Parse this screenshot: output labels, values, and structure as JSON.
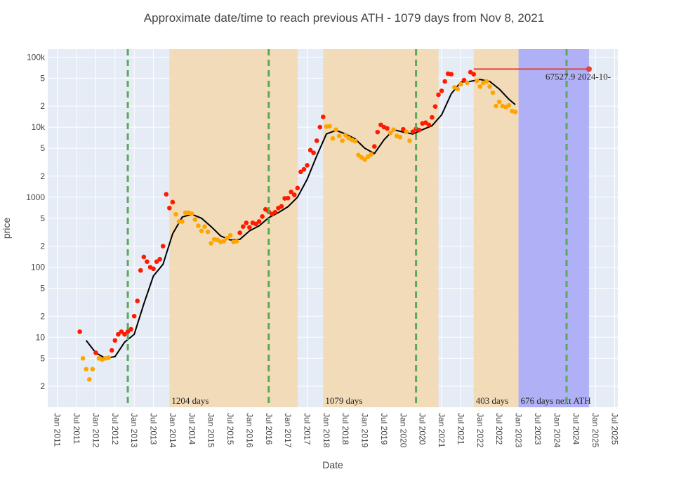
{
  "chart_data": {
    "type": "scatter",
    "title": "Approximate date/time to reach previous ATH - 1079 days from Nov 8, 2021",
    "x_label": "Date",
    "y_label": "price",
    "log_y": true,
    "grid": true,
    "xlim": [
      "2010-10",
      "2025-08"
    ],
    "ylim": [
      1,
      130000
    ],
    "xticks": [
      {
        "value": "2011-01",
        "label": "Jan 2011"
      },
      {
        "value": "2011-07",
        "label": "Jul 2011"
      },
      {
        "value": "2012-01",
        "label": "Jan 2012"
      },
      {
        "value": "2012-07",
        "label": "Jul 2012"
      },
      {
        "value": "2013-01",
        "label": "Jan 2013"
      },
      {
        "value": "2013-07",
        "label": "Jul 2013"
      },
      {
        "value": "2014-01",
        "label": "Jan 2014"
      },
      {
        "value": "2014-07",
        "label": "Jul 2014"
      },
      {
        "value": "2015-01",
        "label": "Jan 2015"
      },
      {
        "value": "2015-07",
        "label": "Jul 2015"
      },
      {
        "value": "2016-01",
        "label": "Jan 2016"
      },
      {
        "value": "2016-07",
        "label": "Jul 2016"
      },
      {
        "value": "2017-01",
        "label": "Jan 2017"
      },
      {
        "value": "2017-07",
        "label": "Jul 2017"
      },
      {
        "value": "2018-01",
        "label": "Jan 2018"
      },
      {
        "value": "2018-07",
        "label": "Jul 2018"
      },
      {
        "value": "2019-01",
        "label": "Jan 2019"
      },
      {
        "value": "2019-07",
        "label": "Jul 2019"
      },
      {
        "value": "2020-01",
        "label": "Jan 2020"
      },
      {
        "value": "2020-07",
        "label": "Jul 2020"
      },
      {
        "value": "2021-01",
        "label": "Jan 2021"
      },
      {
        "value": "2021-07",
        "label": "Jul 2021"
      },
      {
        "value": "2022-01",
        "label": "Jan 2022"
      },
      {
        "value": "2022-07",
        "label": "Jul 2022"
      },
      {
        "value": "2023-01",
        "label": "Jan 2023"
      },
      {
        "value": "2023-07",
        "label": "Jul 2023"
      },
      {
        "value": "2024-01",
        "label": "Jan 2024"
      },
      {
        "value": "2024-07",
        "label": "Jul 2024"
      },
      {
        "value": "2025-01",
        "label": "Jan 2025"
      },
      {
        "value": "2025-07",
        "label": "Jul 2025"
      }
    ],
    "yticks": [
      2,
      5,
      10,
      {
        "value": 20,
        "label": "2"
      },
      {
        "value": 50,
        "label": "5"
      },
      100,
      {
        "value": 200,
        "label": "2"
      },
      {
        "value": 500,
        "label": "5"
      },
      1000,
      {
        "value": 2000,
        "label": "2"
      },
      {
        "value": 5000,
        "label": "5"
      },
      {
        "value": 10000,
        "label": "10k"
      },
      {
        "value": 20000,
        "label": "2"
      },
      {
        "value": 50000,
        "label": "5"
      },
      {
        "value": 100000,
        "label": "100k"
      }
    ],
    "shaded_regions": [
      {
        "x0": "2013-12",
        "x1": "2017-04",
        "color": "#f2dab4",
        "label": "1204 days"
      },
      {
        "x0": "2017-12",
        "x1": "2020-12",
        "color": "#f2dab4",
        "label": "1079 days"
      },
      {
        "x0": "2021-11",
        "x1": "2023-01",
        "color": "#f2dab4",
        "label": "403 days"
      },
      {
        "x0": "2023-01",
        "x1": "2024-11",
        "color": "#adadf7",
        "label": "676 days next ATH"
      }
    ],
    "vlines": [
      "2012-11",
      "2016-07",
      "2020-05",
      "2024-04"
    ],
    "vline_color": "#5ba85b",
    "ath": {
      "x0": "2021-11",
      "x1": "2024-11",
      "value": 67527.9,
      "color": "#e0443c",
      "label": "67527.9 2024-10-"
    },
    "series": [
      {
        "type": "scatter",
        "color": "#ff1a00",
        "x": [
          "2011-08",
          "2012-01",
          "2012-06",
          "2012-07",
          "2012-08",
          "2012-09",
          "2012-10",
          "2012-11",
          "2012-12",
          "2013-01",
          "2013-02",
          "2013-03",
          "2013-04",
          "2013-05",
          "2013-06",
          "2013-07",
          "2013-08",
          "2013-09",
          "2013-10",
          "2013-11",
          "2013-12",
          "2014-01",
          "2015-10",
          "2015-11",
          "2015-12",
          "2016-01",
          "2016-02",
          "2016-03",
          "2016-04",
          "2016-05",
          "2016-06",
          "2016-07",
          "2016-08",
          "2016-09",
          "2016-10",
          "2016-11",
          "2016-12",
          "2017-01",
          "2017-02",
          "2017-03",
          "2017-04",
          "2017-05",
          "2017-06",
          "2017-07",
          "2017-08",
          "2017-09",
          "2017-10",
          "2017-11",
          "2017-12",
          "2019-04",
          "2019-05",
          "2019-06",
          "2019-07",
          "2019-08",
          "2020-01",
          "2020-04",
          "2020-05",
          "2020-06",
          "2020-07",
          "2020-08",
          "2020-09",
          "2020-10",
          "2020-11",
          "2020-12",
          "2021-01",
          "2021-02",
          "2021-03",
          "2021-04",
          "2021-08",
          "2021-10",
          "2021-11"
        ],
        "values": [
          12,
          6,
          6.5,
          9,
          11,
          12,
          11,
          12,
          13,
          20,
          33,
          90,
          140,
          120,
          100,
          95,
          120,
          130,
          200,
          1100,
          700,
          850,
          310,
          380,
          430,
          370,
          430,
          415,
          450,
          530,
          670,
          620,
          575,
          610,
          700,
          740,
          960,
          970,
          1190,
          1080,
          1350,
          2300,
          2500,
          2850,
          4700,
          4300,
          6400,
          10000,
          14000,
          5300,
          8500,
          10800,
          10000,
          9600,
          9300,
          8600,
          9400,
          9100,
          11300,
          11600,
          10800,
          13800,
          19700,
          29000,
          33000,
          45000,
          58000,
          57000,
          47000,
          61000,
          57000
        ]
      },
      {
        "type": "scatter",
        "color": "#ffa500",
        "x": [
          "2011-09",
          "2011-10",
          "2011-11",
          "2011-12",
          "2012-02",
          "2012-03",
          "2012-04",
          "2012-05",
          "2014-02",
          "2014-03",
          "2014-04",
          "2014-05",
          "2014-06",
          "2014-07",
          "2014-08",
          "2014-09",
          "2014-10",
          "2014-11",
          "2014-12",
          "2015-01",
          "2015-02",
          "2015-03",
          "2015-04",
          "2015-05",
          "2015-06",
          "2015-07",
          "2015-08",
          "2015-09",
          "2018-01",
          "2018-02",
          "2018-03",
          "2018-04",
          "2018-05",
          "2018-06",
          "2018-07",
          "2018-08",
          "2018-09",
          "2018-10",
          "2018-11",
          "2018-12",
          "2019-01",
          "2019-02",
          "2019-03",
          "2019-09",
          "2019-10",
          "2019-11",
          "2019-12",
          "2020-02",
          "2020-03",
          "2021-05",
          "2021-06",
          "2021-07",
          "2021-09",
          "2021-12",
          "2022-01",
          "2022-02",
          "2022-03",
          "2022-04",
          "2022-05",
          "2022-06",
          "2022-07",
          "2022-08",
          "2022-09",
          "2022-10",
          "2022-11",
          "2022-12"
        ],
        "values": [
          5,
          3.5,
          2.5,
          3.5,
          5,
          4.8,
          5,
          5.1,
          570,
          450,
          450,
          600,
          600,
          580,
          480,
          390,
          330,
          380,
          320,
          220,
          250,
          245,
          230,
          235,
          260,
          285,
          230,
          235,
          10200,
          10300,
          6900,
          9200,
          7500,
          6400,
          7700,
          7000,
          6600,
          6300,
          4000,
          3700,
          3450,
          3800,
          4100,
          8300,
          9200,
          7500,
          7200,
          8600,
          6400,
          37000,
          35000,
          41000,
          43000,
          46000,
          38000,
          43000,
          45000,
          38000,
          31000,
          20000,
          23000,
          20000,
          19400,
          20500,
          17000,
          16500
        ]
      },
      {
        "type": "line",
        "color": "#000000",
        "x": [
          "2011-10",
          "2012-01",
          "2012-04",
          "2012-07",
          "2012-10",
          "2013-01",
          "2013-04",
          "2013-07",
          "2013-10",
          "2014-01",
          "2014-04",
          "2014-07",
          "2014-10",
          "2015-01",
          "2015-04",
          "2015-07",
          "2015-10",
          "2016-01",
          "2016-04",
          "2016-07",
          "2016-10",
          "2017-01",
          "2017-04",
          "2017-07",
          "2017-10",
          "2018-01",
          "2018-04",
          "2018-07",
          "2018-10",
          "2019-01",
          "2019-04",
          "2019-07",
          "2019-10",
          "2020-01",
          "2020-04",
          "2020-07",
          "2020-10",
          "2021-01",
          "2021-04",
          "2021-07",
          "2021-10",
          "2022-01",
          "2022-04",
          "2022-07",
          "2022-10",
          "2022-12"
        ],
        "values": [
          9,
          6,
          5,
          5.3,
          8.5,
          11,
          30,
          75,
          110,
          300,
          520,
          570,
          500,
          380,
          280,
          245,
          250,
          330,
          390,
          510,
          600,
          730,
          1000,
          1800,
          3900,
          8000,
          9000,
          8000,
          6800,
          5000,
          4200,
          6600,
          9200,
          8500,
          8000,
          9200,
          10500,
          15000,
          30000,
          44000,
          45000,
          48000,
          45000,
          35000,
          25000,
          21000
        ]
      }
    ]
  }
}
